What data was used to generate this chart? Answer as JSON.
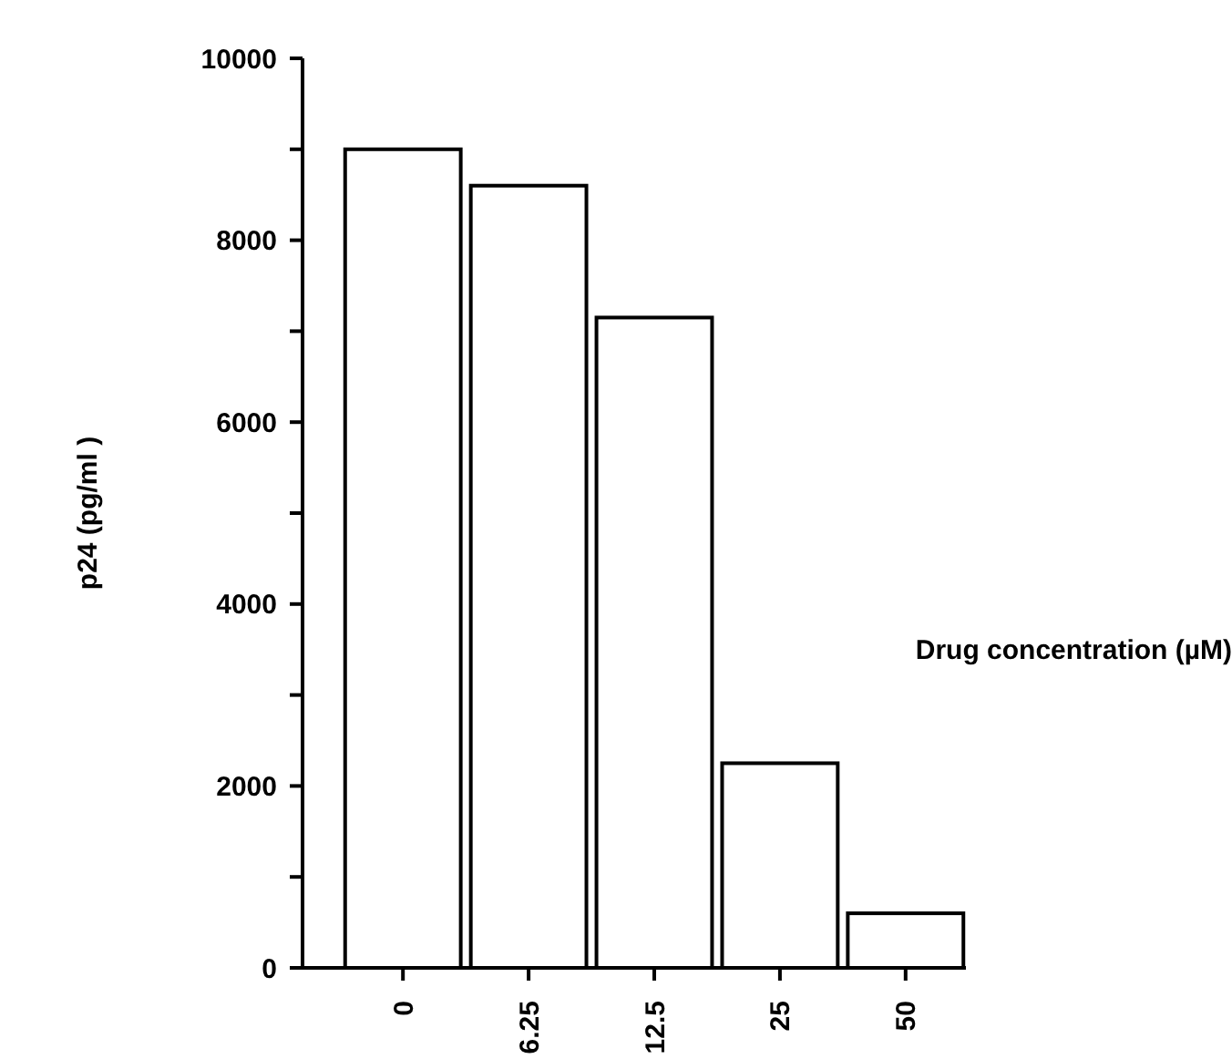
{
  "chart_data": {
    "type": "bar",
    "xlabel": "Drug concentration (µM)",
    "ylabel": "p24 (pg/ml )",
    "categories": [
      "0",
      "6.25",
      "12.5",
      "25",
      "50"
    ],
    "values": [
      9000,
      8600,
      7150,
      2250,
      600
    ],
    "color": "#ffffff",
    "ylim": [
      0,
      10000
    ],
    "yticks": [
      0,
      {
        "value": 1000,
        "label": null
      },
      2000,
      {
        "value": 3000,
        "label": null
      },
      4000,
      {
        "value": 5000,
        "label": null
      },
      6000,
      {
        "value": 7000,
        "label": null
      },
      8000,
      {
        "value": 9000,
        "label": null
      },
      10000
    ],
    "grid": false
  }
}
